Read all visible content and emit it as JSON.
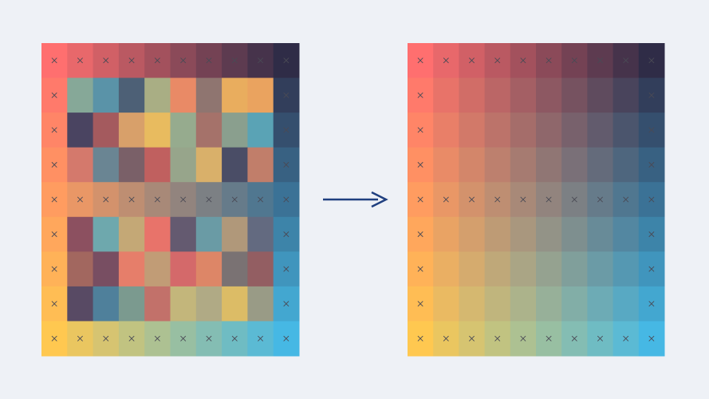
{
  "corner_colors": {
    "top_left": "#ff6f6f",
    "top_right": "#2f2c47",
    "bottom_left": "#ffc850",
    "bottom_right": "#46b8e4"
  }
}
